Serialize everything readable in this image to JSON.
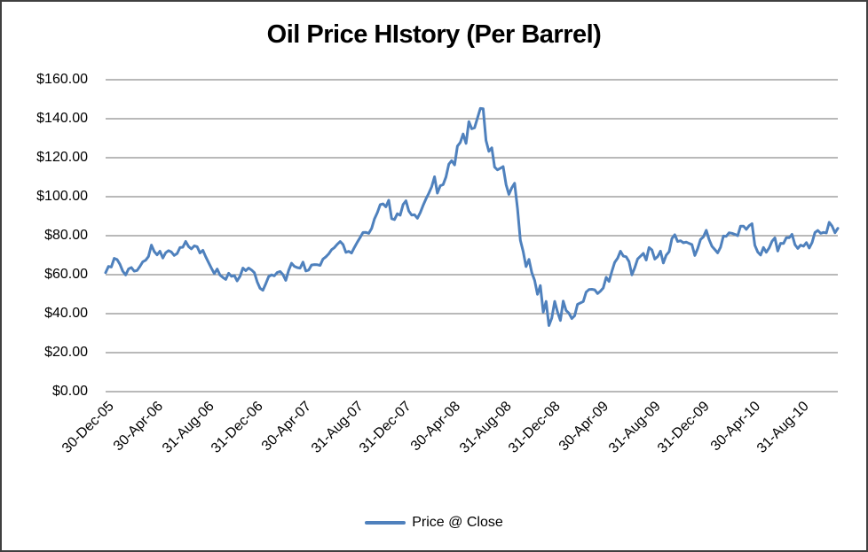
{
  "title": "Oil Price HIstory (Per Barrel)",
  "legend": {
    "label": "Price @ Close"
  },
  "colors": {
    "line": "#4F81BD",
    "gridline": "#8F8F8F",
    "text": "#000000",
    "background": "#FFFFFF",
    "border": "#3F3F3F"
  },
  "chart_data": {
    "type": "line",
    "title": "Oil Price HIstory (Per Barrel)",
    "xlabel": "",
    "ylabel": "",
    "ylim": [
      0,
      160
    ],
    "y_step": 20,
    "grid": "horizontal",
    "legend_position": "bottom-center",
    "y_tick_labels": [
      "$0.00",
      "$20.00",
      "$40.00",
      "$60.00",
      "$80.00",
      "$100.00",
      "$120.00",
      "$140.00",
      "$160.00"
    ],
    "x_tick_labels": [
      "30-Dec-05",
      "30-Apr-06",
      "31-Aug-06",
      "31-Dec-06",
      "30-Apr-07",
      "31-Aug-07",
      "31-Dec-07",
      "30-Apr-08",
      "31-Aug-08",
      "31-Dec-08",
      "30-Apr-09",
      "31-Aug-09",
      "31-Dec-09",
      "30-Apr-10",
      "31-Aug-10"
    ],
    "x_tick_indices": [
      0,
      17,
      35,
      52,
      69,
      87,
      104,
      121,
      139,
      156,
      173,
      191,
      208,
      226,
      243
    ],
    "x_unit": "weekly closes, 30-Dec-05 through Nov-10",
    "series": [
      {
        "name": "Price @ Close",
        "color": "#4F81BD",
        "values": [
          61.04,
          64.21,
          63.92,
          68.35,
          67.76,
          65.37,
          61.84,
          59.88,
          62.91,
          63.67,
          61.84,
          62.12,
          64.26,
          66.63,
          67.39,
          69.32,
          75.17,
          71.88,
          70.19,
          72.04,
          68.53,
          71.29,
          72.33,
          71.63,
          69.88,
          70.87,
          73.93,
          74.09,
          77.03,
          74.43,
          73.24,
          74.76,
          74.35,
          71.14,
          72.51,
          69.19,
          66.25,
          63.33,
          60.55,
          62.91,
          59.76,
          58.57,
          57.54,
          60.75,
          59.14,
          59.59,
          56.81,
          59.24,
          63.43,
          62.03,
          63.43,
          62.41,
          61.05,
          56.31,
          52.99,
          51.99,
          55.42,
          59.02,
          59.89,
          59.39,
          61.14,
          61.64,
          60.05,
          57.11,
          62.28,
          65.87,
          64.28,
          63.63,
          63.38,
          66.46,
          61.93,
          62.37,
          64.94,
          65.2,
          65.08,
          64.76,
          68.0,
          69.14,
          70.68,
          72.81,
          73.93,
          75.57,
          77.02,
          75.48,
          71.47,
          71.98,
          71.09,
          74.04,
          76.7,
          79.1,
          81.62,
          81.66,
          81.22,
          83.69,
          88.6,
          91.86,
          95.93,
          96.32,
          94.84,
          98.18,
          88.71,
          88.28,
          91.27,
          90.49,
          96.0,
          97.91,
          92.69,
          90.57,
          90.71,
          88.96,
          91.77,
          95.5,
          98.81,
          101.84,
          105.15,
          110.21,
          101.84,
          105.62,
          106.23,
          110.14,
          116.69,
          118.52,
          116.32,
          125.96,
          127.82,
          132.19,
          127.35,
          138.54,
          134.86,
          135.36,
          140.21,
          145.29,
          145.08,
          128.88,
          123.26,
          125.1,
          115.2,
          113.77,
          114.59,
          115.46,
          106.23,
          101.18,
          104.55,
          106.89,
          93.88,
          77.7,
          71.85,
          64.15,
          67.81,
          61.04,
          57.04,
          49.93,
          54.43,
          40.81,
          46.28,
          33.87,
          37.71,
          46.34,
          40.83,
          36.51,
          46.47,
          41.68,
          40.17,
          37.51,
          38.94,
          44.76,
          45.52,
          46.25,
          51.06,
          52.38,
          52.51,
          52.24,
          50.33,
          51.55,
          53.2,
          58.63,
          56.54,
          61.67,
          66.31,
          68.44,
          72.04,
          69.55,
          69.16,
          66.73,
          59.89,
          63.56,
          68.05,
          69.45,
          70.93,
          67.51,
          73.89,
          72.74,
          68.02,
          69.29,
          72.04,
          66.02,
          69.95,
          71.77,
          78.53,
          80.5,
          77.0,
          77.43,
          76.35,
          76.72,
          76.05,
          75.47,
          69.87,
          73.36,
          78.05,
          79.36,
          82.75,
          78.0,
          74.54,
          72.89,
          71.19,
          74.13,
          79.81,
          79.66,
          81.5,
          81.24,
          80.68,
          80.0,
          84.87,
          84.92,
          83.24,
          85.12,
          86.15,
          75.11,
          71.61,
          70.04,
          73.97,
          71.51,
          73.78,
          77.18,
          78.86,
          72.14,
          76.09,
          76.01,
          78.98,
          78.95,
          80.7,
          75.39,
          73.46,
          75.17,
          74.6,
          76.45,
          73.66,
          76.49,
          81.58,
          82.66,
          81.25,
          81.69,
          81.43,
          86.85,
          84.88,
          81.51,
          83.76
        ]
      }
    ]
  }
}
